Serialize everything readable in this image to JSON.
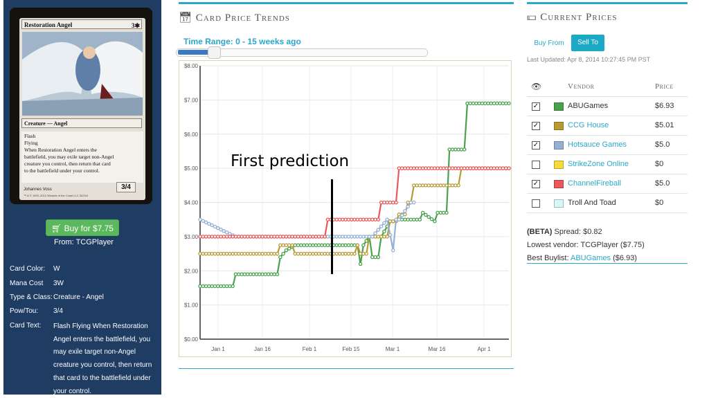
{
  "card": {
    "name": "Restoration Angel",
    "mana": "3✱",
    "type_line": "Creature — Angel",
    "text_lines": [
      "Flash",
      "Flying",
      "When Restoration Angel enters the",
      "battlefield, you may exile target non-Angel",
      "creature you control, then return that card",
      "to the battlefield under your control."
    ],
    "pt": "3/4",
    "artist": "Johannes Voss",
    "copyright": "™ & © 1993–2012 Wizards of the Coast LLC 32/244"
  },
  "buy": {
    "label": "Buy for $7.75",
    "from": "From: TCGPlayer"
  },
  "details": [
    {
      "label": "Card Color:",
      "value": "W"
    },
    {
      "label": "Mana Cost",
      "value": "3W"
    },
    {
      "label": "Type & Class:",
      "value": "Creature - Angel"
    },
    {
      "label": "Pow/Tou:",
      "value": "3/4"
    },
    {
      "label": "Card Text:",
      "value": "Flash Flying When Restoration Angel enters the battlefield, you may exile target non-Angel creature you control, then return that card to the battlefield under your control."
    }
  ],
  "trends": {
    "title": "Card Price Trends",
    "range_label": "Time Range: 0 - 15 weeks ago",
    "slider_fraction": 0.17
  },
  "annotation": {
    "text": "First prediction"
  },
  "chart_data": {
    "type": "line",
    "x_ticks": [
      "Jan 1",
      "Jan 16",
      "Feb 1",
      "Feb 15",
      "Mar 1",
      "Mar 16",
      "Apr 1"
    ],
    "y_ticks": [
      "$0.00",
      "$1.00",
      "$2.00",
      "$3.00",
      "$4.00",
      "$5.00",
      "$6.00",
      "$7.00",
      "$8.00"
    ],
    "ylim": [
      0,
      8
    ],
    "xlim": [
      0,
      104
    ],
    "grid": true,
    "series": [
      {
        "name": "ABUGames",
        "color": "#49a24b",
        "points": [
          [
            0,
            1.55
          ],
          [
            11,
            1.55
          ],
          [
            12,
            1.9
          ],
          [
            26,
            1.9
          ],
          [
            27,
            2.4
          ],
          [
            29,
            2.6
          ],
          [
            32,
            2.75
          ],
          [
            53,
            2.75
          ],
          [
            54,
            2.2
          ],
          [
            55,
            2.75
          ],
          [
            57,
            3.0
          ],
          [
            58,
            2.4
          ],
          [
            60,
            2.4
          ],
          [
            61,
            3.0
          ],
          [
            64,
            3.45
          ],
          [
            65,
            3.45
          ],
          [
            67,
            3.5
          ],
          [
            74,
            3.5
          ],
          [
            75,
            3.7
          ],
          [
            79,
            3.45
          ],
          [
            80,
            3.7
          ],
          [
            83,
            3.7
          ],
          [
            84,
            5.55
          ],
          [
            89,
            5.55
          ],
          [
            90,
            6.9
          ],
          [
            104,
            6.9
          ]
        ]
      },
      {
        "name": "CCG House",
        "color": "#b89a35",
        "points": [
          [
            0,
            2.5
          ],
          [
            26,
            2.5
          ],
          [
            27,
            2.75
          ],
          [
            31,
            2.75
          ],
          [
            32,
            2.5
          ],
          [
            52,
            2.5
          ],
          [
            53,
            2.75
          ],
          [
            54,
            2.5
          ],
          [
            56,
            2.5
          ],
          [
            57,
            3.0
          ],
          [
            63,
            3.0
          ],
          [
            64,
            3.45
          ],
          [
            66,
            3.45
          ],
          [
            67,
            3.65
          ],
          [
            69,
            3.65
          ],
          [
            70,
            4.0
          ],
          [
            71,
            4.0
          ],
          [
            72,
            4.5
          ],
          [
            87,
            4.5
          ],
          [
            88,
            5.0
          ],
          [
            104,
            5.0
          ]
        ]
      },
      {
        "name": "Hotsauce Games",
        "color": "#94b0d3",
        "points": [
          [
            0,
            3.5
          ],
          [
            12,
            3.0
          ],
          [
            44,
            3.0
          ],
          [
            45,
            3.0
          ],
          [
            54,
            3.0
          ],
          [
            55,
            3.0
          ],
          [
            58,
            3.0
          ],
          [
            63,
            3.5
          ],
          [
            65,
            2.6
          ],
          [
            66,
            3.5
          ],
          [
            67,
            3.5
          ],
          [
            71,
            4.0
          ],
          [
            72,
            4.0
          ]
        ]
      },
      {
        "name": "ChannelFireball",
        "color": "#e9595a",
        "points": [
          [
            0,
            3.0
          ],
          [
            42,
            3.0
          ],
          [
            43,
            3.5
          ],
          [
            60,
            3.5
          ],
          [
            61,
            4.0
          ],
          [
            66,
            4.0
          ],
          [
            67,
            5.0
          ],
          [
            104,
            5.0
          ]
        ]
      }
    ]
  },
  "prices": {
    "title": "Current Prices",
    "tab_buy": "Buy From",
    "tab_sell": "Sell To",
    "last_updated": "Last Updated: Apr 8, 2014 10:27:45 PM PST",
    "col_vendor": "Vendor",
    "col_price": "Price",
    "vendors": [
      {
        "name": "ABUGames",
        "price": "$6.93",
        "checked": "✓",
        "color": "#49a24b"
      },
      {
        "name": "CCG House",
        "price": "$5.01",
        "checked": "✓",
        "color": "#b89a35"
      },
      {
        "name": "Hotsauce Games",
        "price": "$5.0",
        "checked": "✓",
        "color": "#94b0d3"
      },
      {
        "name": "StrikeZone Online",
        "price": "$0",
        "checked": "",
        "color": "#f5db3b"
      },
      {
        "name": "ChannelFireball",
        "price": "$5.0",
        "checked": "✓",
        "color": "#e9595a"
      },
      {
        "name": "Troll And Toad",
        "price": "$0",
        "checked": "",
        "color": "#d8f7f7"
      }
    ],
    "spread_label": "(BETA)",
    "spread_value": " Spread: $0.82",
    "lowest_vendor": "Lowest vendor: TCGPlayer ($7.75)",
    "best_buylist_label": "Best Buylist: ",
    "best_buylist_vendor": "ABUGames",
    "best_buylist_price": " ($6.93)"
  }
}
